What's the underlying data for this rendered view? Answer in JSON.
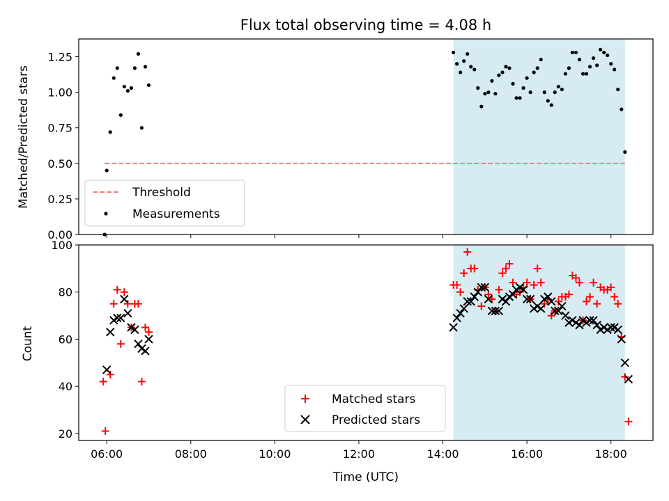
{
  "chart_data": [
    {
      "type": "scatter",
      "title": "Flux total observing time = 4.08 h",
      "xlabel": "",
      "ylabel": "Matched/Predicted stars",
      "xlim": [
        "05:20",
        "19:00"
      ],
      "ylim": [
        0,
        1.375
      ],
      "yticks": [
        "0.00",
        "0.25",
        "0.50",
        "0.75",
        "1.00",
        "1.25"
      ],
      "highlight_span": [
        "14:15",
        "18:20"
      ],
      "highlight_color": "#add8e6",
      "threshold": {
        "name": "Threshold",
        "value": 0.5,
        "x_range": [
          "05:57",
          "18:20"
        ],
        "color": "#f08080",
        "style": "dashed"
      },
      "legend": {
        "placement": "lower-left",
        "entries": [
          "Threshold",
          "Measurements"
        ]
      },
      "series": [
        {
          "name": "Measurements",
          "color": "#000000",
          "marker": "dot",
          "points": [
            [
              "05:57",
              0.0
            ],
            [
              "06:00",
              0.45
            ],
            [
              "06:05",
              0.72
            ],
            [
              "06:10",
              1.1
            ],
            [
              "06:15",
              1.17
            ],
            [
              "06:20",
              0.84
            ],
            [
              "06:25",
              1.04
            ],
            [
              "06:30",
              1.01
            ],
            [
              "06:35",
              1.03
            ],
            [
              "06:40",
              1.17
            ],
            [
              "06:45",
              1.27
            ],
            [
              "06:50",
              0.75
            ],
            [
              "06:55",
              1.18
            ],
            [
              "07:00",
              1.05
            ],
            [
              "14:15",
              1.28
            ],
            [
              "14:20",
              1.2
            ],
            [
              "14:25",
              1.14
            ],
            [
              "14:30",
              1.22
            ],
            [
              "14:35",
              1.27
            ],
            [
              "14:40",
              1.18
            ],
            [
              "14:45",
              1.16
            ],
            [
              "14:50",
              1.03
            ],
            [
              "14:55",
              0.9
            ],
            [
              "15:00",
              0.99
            ],
            [
              "15:05",
              1.0
            ],
            [
              "15:10",
              1.08
            ],
            [
              "15:15",
              0.99
            ],
            [
              "15:20",
              1.12
            ],
            [
              "15:25",
              1.14
            ],
            [
              "15:30",
              1.18
            ],
            [
              "15:35",
              1.17
            ],
            [
              "15:40",
              1.06
            ],
            [
              "15:45",
              0.96
            ],
            [
              "15:50",
              0.96
            ],
            [
              "15:55",
              1.03
            ],
            [
              "16:00",
              1.1
            ],
            [
              "16:05",
              1.0
            ],
            [
              "16:10",
              1.14
            ],
            [
              "16:15",
              1.17
            ],
            [
              "16:20",
              1.23
            ],
            [
              "16:25",
              1.0
            ],
            [
              "16:30",
              0.94
            ],
            [
              "16:35",
              0.91
            ],
            [
              "16:40",
              1.0
            ],
            [
              "16:45",
              1.04
            ],
            [
              "16:50",
              1.02
            ],
            [
              "16:55",
              1.13
            ],
            [
              "17:00",
              1.17
            ],
            [
              "17:05",
              1.28
            ],
            [
              "17:10",
              1.28
            ],
            [
              "17:15",
              1.23
            ],
            [
              "17:20",
              1.13
            ],
            [
              "17:25",
              1.13
            ],
            [
              "17:30",
              1.18
            ],
            [
              "17:35",
              1.24
            ],
            [
              "17:40",
              1.19
            ],
            [
              "17:45",
              1.3
            ],
            [
              "17:50",
              1.28
            ],
            [
              "17:55",
              1.26
            ],
            [
              "18:00",
              1.2
            ],
            [
              "18:05",
              1.16
            ],
            [
              "18:10",
              1.02
            ],
            [
              "18:15",
              0.88
            ],
            [
              "18:20",
              0.58
            ]
          ]
        }
      ]
    },
    {
      "type": "scatter",
      "xlabel": "Time (UTC)",
      "ylabel": "Count",
      "xlim": [
        "05:20",
        "19:00"
      ],
      "ylim": [
        17,
        100
      ],
      "xticks": [
        "06:00",
        "08:00",
        "10:00",
        "12:00",
        "14:00",
        "16:00",
        "18:00"
      ],
      "yticks": [
        "20",
        "40",
        "60",
        "80",
        "100"
      ],
      "highlight_span": [
        "14:15",
        "18:20"
      ],
      "highlight_color": "#add8e6",
      "legend": {
        "placement": "lower-center",
        "entries": [
          "Matched stars",
          "Predicted stars"
        ]
      },
      "series": [
        {
          "name": "Matched stars",
          "color": "#ff0000",
          "marker": "plus",
          "points": [
            [
              "05:55",
              42
            ],
            [
              "05:58",
              21
            ],
            [
              "06:05",
              45
            ],
            [
              "06:10",
              75
            ],
            [
              "06:15",
              81
            ],
            [
              "06:20",
              58
            ],
            [
              "06:25",
              80
            ],
            [
              "06:30",
              75
            ],
            [
              "06:35",
              65
            ],
            [
              "06:40",
              75
            ],
            [
              "06:45",
              75
            ],
            [
              "06:50",
              42
            ],
            [
              "06:55",
              65
            ],
            [
              "07:00",
              63
            ],
            [
              "14:15",
              83
            ],
            [
              "14:20",
              83
            ],
            [
              "14:25",
              80
            ],
            [
              "14:30",
              88
            ],
            [
              "14:35",
              97
            ],
            [
              "14:40",
              90
            ],
            [
              "14:45",
              90
            ],
            [
              "14:50",
              81
            ],
            [
              "14:55",
              74
            ],
            [
              "15:00",
              82
            ],
            [
              "15:05",
              79
            ],
            [
              "15:10",
              77
            ],
            [
              "15:15",
              72
            ],
            [
              "15:20",
              81
            ],
            [
              "15:25",
              88
            ],
            [
              "15:30",
              90
            ],
            [
              "15:35",
              92
            ],
            [
              "15:40",
              84
            ],
            [
              "15:45",
              79
            ],
            [
              "15:50",
              80
            ],
            [
              "15:55",
              82
            ],
            [
              "16:00",
              84
            ],
            [
              "16:05",
              77
            ],
            [
              "16:10",
              83
            ],
            [
              "16:15",
              90
            ],
            [
              "16:20",
              84
            ],
            [
              "16:25",
              75
            ],
            [
              "16:30",
              77
            ],
            [
              "16:35",
              70
            ],
            [
              "16:40",
              72
            ],
            [
              "16:45",
              76
            ],
            [
              "16:50",
              78
            ],
            [
              "16:55",
              78
            ],
            [
              "17:00",
              79
            ],
            [
              "17:05",
              87
            ],
            [
              "17:10",
              86
            ],
            [
              "17:15",
              84
            ],
            [
              "17:20",
              68
            ],
            [
              "17:25",
              76
            ],
            [
              "17:30",
              78
            ],
            [
              "17:35",
              84
            ],
            [
              "17:40",
              75
            ],
            [
              "17:45",
              82
            ],
            [
              "17:50",
              81
            ],
            [
              "17:55",
              81
            ],
            [
              "18:00",
              82
            ],
            [
              "18:05",
              78
            ],
            [
              "18:10",
              75
            ],
            [
              "18:15",
              61
            ],
            [
              "18:20",
              44
            ],
            [
              "18:25",
              25
            ]
          ]
        },
        {
          "name": "Predicted stars",
          "color": "#000000",
          "marker": "x",
          "points": [
            [
              "06:00",
              47
            ],
            [
              "06:05",
              63
            ],
            [
              "06:10",
              68
            ],
            [
              "06:15",
              69
            ],
            [
              "06:20",
              69
            ],
            [
              "06:25",
              77
            ],
            [
              "06:30",
              71
            ],
            [
              "06:35",
              65
            ],
            [
              "06:40",
              64
            ],
            [
              "06:45",
              58
            ],
            [
              "06:50",
              56
            ],
            [
              "06:55",
              55
            ],
            [
              "07:00",
              60
            ],
            [
              "14:15",
              65
            ],
            [
              "14:20",
              69
            ],
            [
              "14:25",
              71
            ],
            [
              "14:30",
              73
            ],
            [
              "14:35",
              76
            ],
            [
              "14:40",
              76
            ],
            [
              "14:45",
              78
            ],
            [
              "14:50",
              80
            ],
            [
              "14:55",
              82
            ],
            [
              "15:00",
              82
            ],
            [
              "15:05",
              77
            ],
            [
              "15:10",
              72
            ],
            [
              "15:15",
              72
            ],
            [
              "15:20",
              72
            ],
            [
              "15:25",
              77
            ],
            [
              "15:30",
              76
            ],
            [
              "15:35",
              78
            ],
            [
              "15:40",
              79
            ],
            [
              "15:45",
              81
            ],
            [
              "15:50",
              82
            ],
            [
              "15:55",
              81
            ],
            [
              "16:00",
              77
            ],
            [
              "16:05",
              77
            ],
            [
              "16:10",
              73
            ],
            [
              "16:15",
              74
            ],
            [
              "16:20",
              73
            ],
            [
              "16:25",
              77
            ],
            [
              "16:30",
              78
            ],
            [
              "16:35",
              76
            ],
            [
              "16:40",
              72
            ],
            [
              "16:45",
              72
            ],
            [
              "16:50",
              74
            ],
            [
              "16:55",
              70
            ],
            [
              "17:00",
              67
            ],
            [
              "17:05",
              68
            ],
            [
              "17:10",
              67
            ],
            [
              "17:15",
              66
            ],
            [
              "17:20",
              68
            ],
            [
              "17:25",
              67
            ],
            [
              "17:30",
              68
            ],
            [
              "17:35",
              68
            ],
            [
              "17:40",
              66
            ],
            [
              "17:45",
              64
            ],
            [
              "17:50",
              65
            ],
            [
              "17:55",
              64
            ],
            [
              "18:00",
              65
            ],
            [
              "18:05",
              65
            ],
            [
              "18:10",
              64
            ],
            [
              "18:15",
              60
            ],
            [
              "18:20",
              50
            ],
            [
              "18:25",
              43
            ]
          ]
        }
      ]
    }
  ]
}
